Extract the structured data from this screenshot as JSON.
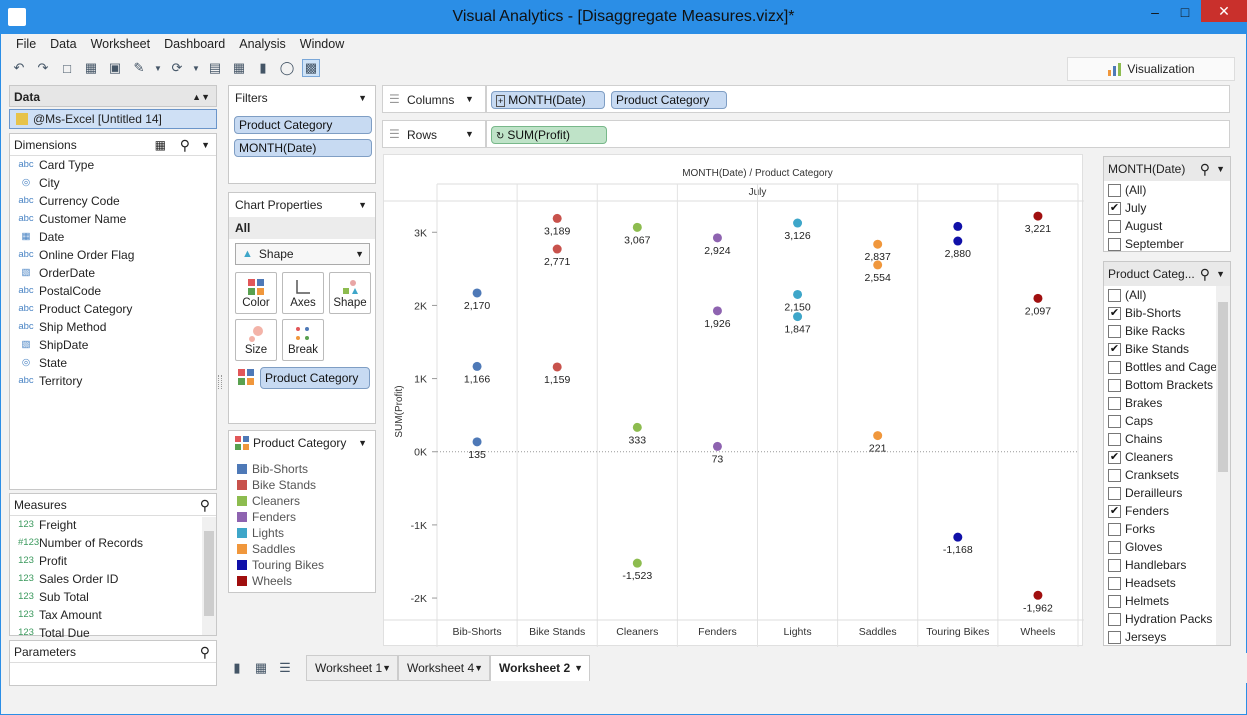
{
  "window": {
    "title": "Visual Analytics - [Disaggregate Measures.vizx]*"
  },
  "menu": [
    "File",
    "Data",
    "Worksheet",
    "Dashboard",
    "Analysis",
    "Window"
  ],
  "vis_tab": "Visualization",
  "data_panel": {
    "header": "Data",
    "source": "@Ms-Excel [Untitled 14]",
    "dimensions_header": "Dimensions",
    "dimensions": [
      {
        "type": "abc",
        "name": "Card Type"
      },
      {
        "type": "geo",
        "name": "City"
      },
      {
        "type": "abc",
        "name": "Currency Code"
      },
      {
        "type": "abc",
        "name": "Customer Name"
      },
      {
        "type": "date",
        "name": "Date"
      },
      {
        "type": "abc",
        "name": "Online Order Flag"
      },
      {
        "type": "datetime",
        "name": "OrderDate"
      },
      {
        "type": "abc",
        "name": "PostalCode"
      },
      {
        "type": "abc",
        "name": "Product Category"
      },
      {
        "type": "abc",
        "name": "Ship Method"
      },
      {
        "type": "datetime",
        "name": "ShipDate"
      },
      {
        "type": "geo",
        "name": "State"
      },
      {
        "type": "abc",
        "name": "Territory"
      }
    ],
    "measures_header": "Measures",
    "measures": [
      {
        "type": "123",
        "name": "Freight"
      },
      {
        "type": "#123",
        "name": "Number of Records"
      },
      {
        "type": "123",
        "name": "Profit"
      },
      {
        "type": "123",
        "name": "Sales Order ID"
      },
      {
        "type": "123",
        "name": "Sub Total"
      },
      {
        "type": "123",
        "name": "Tax Amount"
      },
      {
        "type": "123",
        "name": "Total Due"
      }
    ],
    "parameters_header": "Parameters"
  },
  "filters": {
    "header": "Filters",
    "items": [
      "Product Category",
      "MONTH(Date)"
    ]
  },
  "chart_properties": {
    "header": "Chart Properties",
    "all_label": "All",
    "mark_type": "Shape",
    "buttons": [
      "Color",
      "Axes",
      "Shape",
      "Size",
      "Break"
    ],
    "color_field": "Product Category"
  },
  "legend": {
    "header": "Product Category",
    "items": [
      {
        "name": "Bib-Shorts",
        "color": "#4e79b7"
      },
      {
        "name": "Bike Stands",
        "color": "#c8524c"
      },
      {
        "name": "Cleaners",
        "color": "#8dbc4f"
      },
      {
        "name": "Fenders",
        "color": "#8e63b0"
      },
      {
        "name": "Lights",
        "color": "#3ea6c9"
      },
      {
        "name": "Saddles",
        "color": "#f0973c"
      },
      {
        "name": "Touring Bikes",
        "color": "#1010a8"
      },
      {
        "name": "Wheels",
        "color": "#a00f0f"
      }
    ]
  },
  "shelves": {
    "columns_label": "Columns",
    "columns": [
      "MONTH(Date)",
      "Product Category"
    ],
    "rows_label": "Rows",
    "rows": [
      "SUM(Profit)"
    ]
  },
  "chart_data": {
    "type": "scatter",
    "title": "MONTH(Date) / Product Category",
    "month_header": "July",
    "ylabel": "SUM(Profit)",
    "ylim": [
      -2300,
      3400
    ],
    "yticks": [
      {
        "v": 3000,
        "label": "3K"
      },
      {
        "v": 2000,
        "label": "2K"
      },
      {
        "v": 1000,
        "label": "1K"
      },
      {
        "v": 0,
        "label": "0K"
      },
      {
        "v": -1000,
        "label": "-1K"
      },
      {
        "v": -2000,
        "label": "-2K"
      }
    ],
    "categories": [
      "Bib-Shorts",
      "Bike Stands",
      "Cleaners",
      "Fenders",
      "Lights",
      "Saddles",
      "Touring Bikes",
      "Wheels"
    ],
    "points": [
      {
        "cat": 0,
        "y": 2170,
        "label": "2,170"
      },
      {
        "cat": 0,
        "y": 1166,
        "label": "1,166"
      },
      {
        "cat": 0,
        "y": 135,
        "label": "135"
      },
      {
        "cat": 1,
        "y": 3189,
        "label": "3,189"
      },
      {
        "cat": 1,
        "y": 2771,
        "label": "2,771"
      },
      {
        "cat": 1,
        "y": 1159,
        "label": "1,159"
      },
      {
        "cat": 2,
        "y": 3067,
        "label": "3,067"
      },
      {
        "cat": 2,
        "y": 333,
        "label": "333"
      },
      {
        "cat": 2,
        "y": -1523,
        "label": "-1,523"
      },
      {
        "cat": 3,
        "y": 2924,
        "label": "2,924"
      },
      {
        "cat": 3,
        "y": 1926,
        "label": "1,926"
      },
      {
        "cat": 3,
        "y": 73,
        "label": "73"
      },
      {
        "cat": 4,
        "y": 3126,
        "label": "3,126"
      },
      {
        "cat": 4,
        "y": 2150,
        "label": "2,150"
      },
      {
        "cat": 4,
        "y": 1847,
        "label": "1,847"
      },
      {
        "cat": 5,
        "y": 2837,
        "label": "2,837"
      },
      {
        "cat": 5,
        "y": 2554,
        "label": "2,554"
      },
      {
        "cat": 5,
        "y": 221,
        "label": "221"
      },
      {
        "cat": 6,
        "y": 3080,
        "label": ""
      },
      {
        "cat": 6,
        "y": 2880,
        "label": "2,880"
      },
      {
        "cat": 6,
        "y": -1168,
        "label": "-1,168"
      },
      {
        "cat": 7,
        "y": 3221,
        "label": "3,221"
      },
      {
        "cat": 7,
        "y": 2097,
        "label": "2,097"
      },
      {
        "cat": 7,
        "y": -1962,
        "label": "-1,962"
      }
    ]
  },
  "month_filter": {
    "header": "MONTH(Date)",
    "items": [
      {
        "label": "(All)",
        "checked": false
      },
      {
        "label": "July",
        "checked": true
      },
      {
        "label": "August",
        "checked": false
      },
      {
        "label": "September",
        "checked": false
      }
    ]
  },
  "category_filter": {
    "header": "Product Categ...",
    "items": [
      {
        "label": "(All)",
        "checked": false
      },
      {
        "label": "Bib-Shorts",
        "checked": true
      },
      {
        "label": "Bike Racks",
        "checked": false
      },
      {
        "label": "Bike Stands",
        "checked": true
      },
      {
        "label": "Bottles and Cages",
        "checked": false
      },
      {
        "label": "Bottom Brackets",
        "checked": false
      },
      {
        "label": "Brakes",
        "checked": false
      },
      {
        "label": "Caps",
        "checked": false
      },
      {
        "label": "Chains",
        "checked": false
      },
      {
        "label": "Cleaners",
        "checked": true
      },
      {
        "label": "Cranksets",
        "checked": false
      },
      {
        "label": "Derailleurs",
        "checked": false
      },
      {
        "label": "Fenders",
        "checked": true
      },
      {
        "label": "Forks",
        "checked": false
      },
      {
        "label": "Gloves",
        "checked": false
      },
      {
        "label": "Handlebars",
        "checked": false
      },
      {
        "label": "Headsets",
        "checked": false
      },
      {
        "label": "Helmets",
        "checked": false
      },
      {
        "label": "Hydration Packs",
        "checked": false
      },
      {
        "label": "Jerseys",
        "checked": false
      }
    ]
  },
  "worksheet_tabs": [
    "Worksheet 1",
    "Worksheet 4",
    "Worksheet 2"
  ]
}
